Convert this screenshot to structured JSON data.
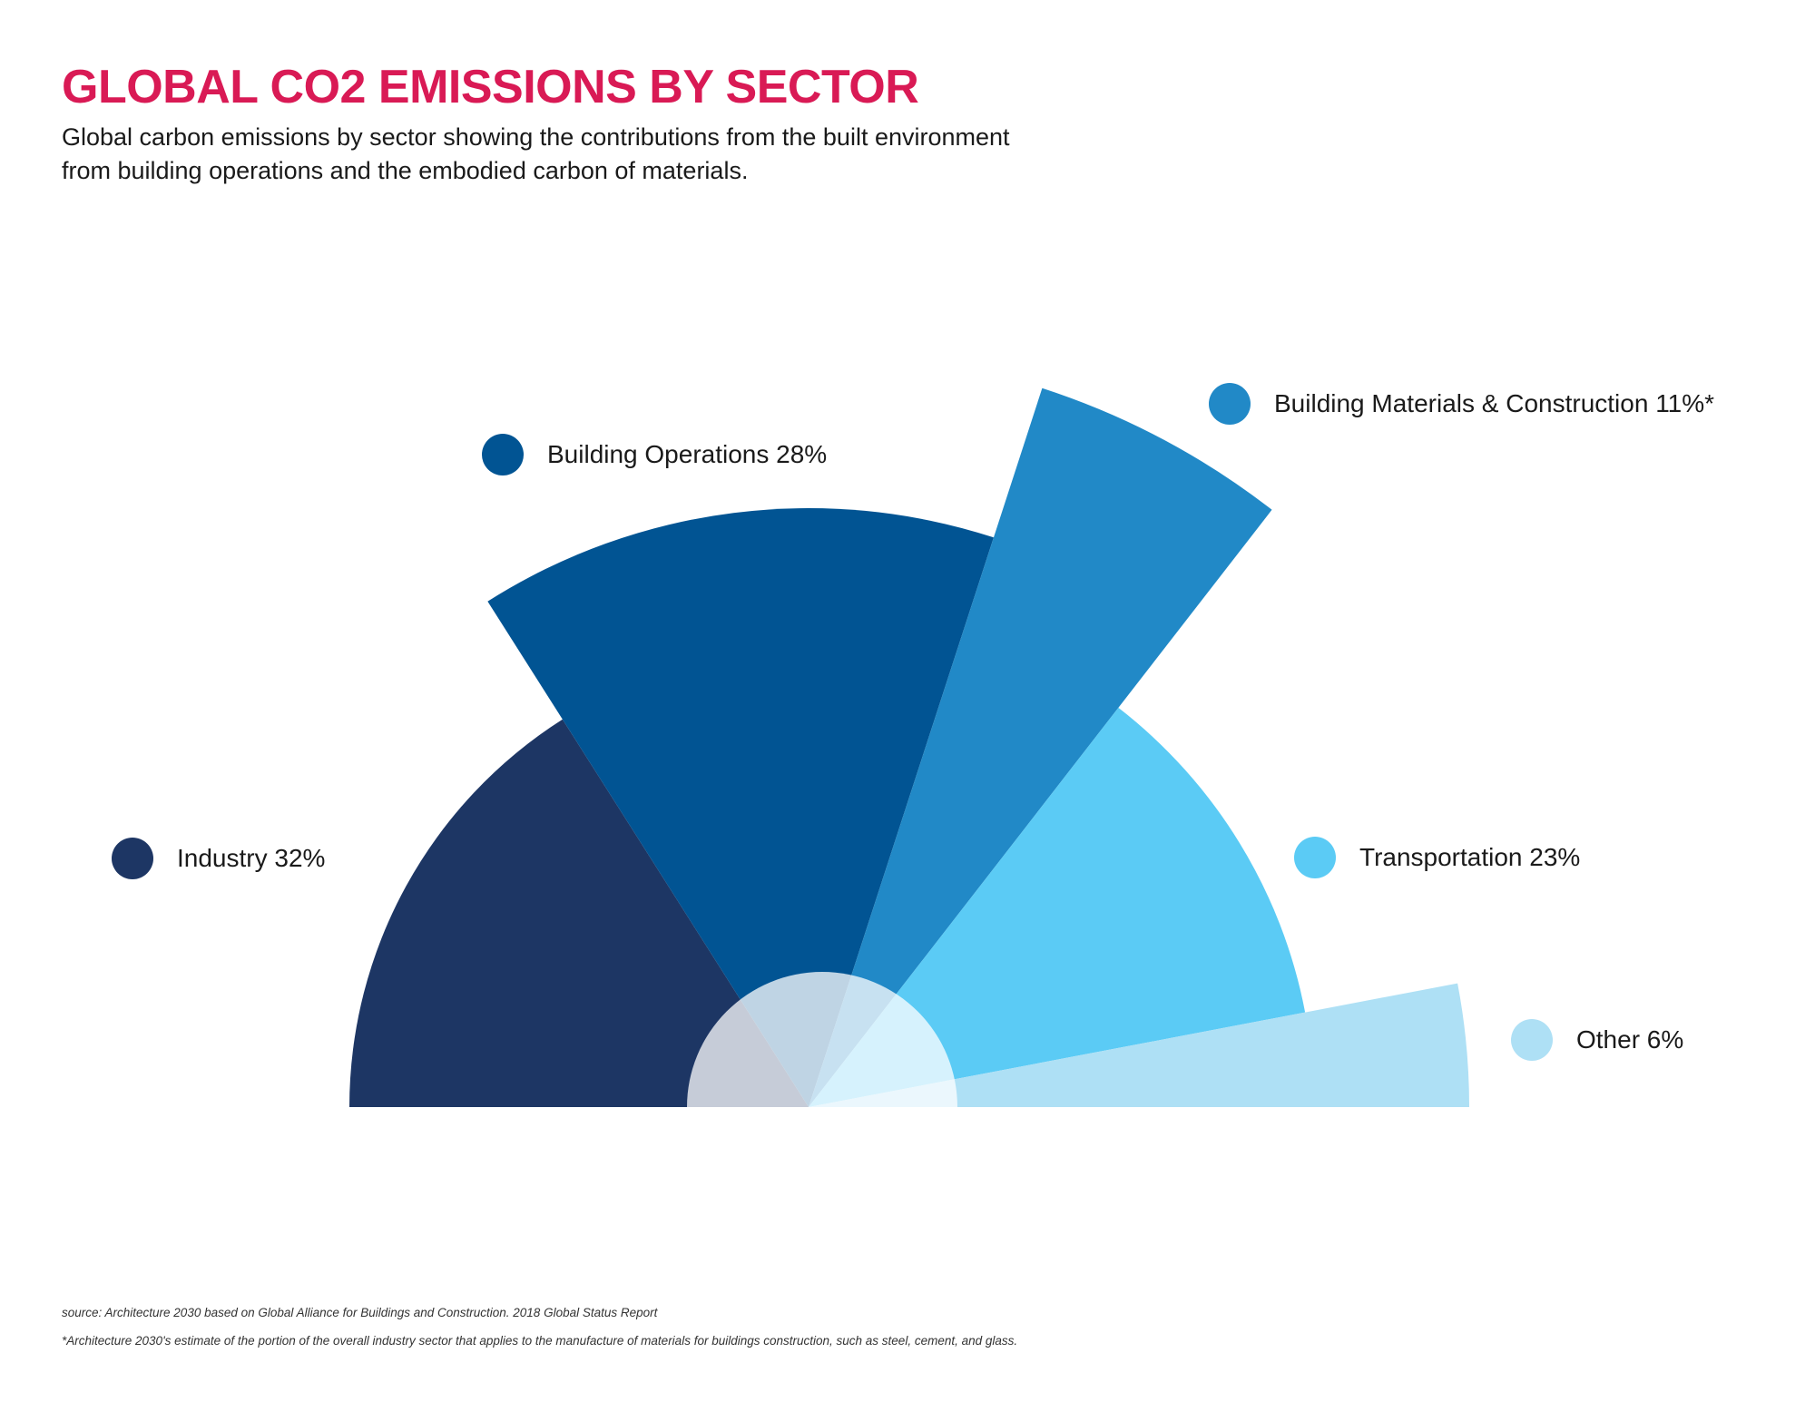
{
  "title": "GLOBAL CO2 EMISSIONS BY SECTOR",
  "subtitle_lines": [
    "Global carbon emissions by sector showing the contributions from the built environment",
    "from building operations and the embodied carbon of materials."
  ],
  "chart_data": {
    "type": "pie",
    "shape": "half-pie, slices with varying radius, translucent center semicircle",
    "categories": [
      "Industry",
      "Building Operations",
      "Building Materials & Construction",
      "Transportation",
      "Other"
    ],
    "values": [
      32,
      28,
      11,
      23,
      6
    ],
    "unit": "%",
    "labels": [
      "Industry 32%",
      "Building Operations 28%",
      "Building Materials & Construction 11%*",
      "Transportation 23%",
      "Other 6%"
    ],
    "colors": [
      "#1d3664",
      "#015493",
      "#2189c7",
      "#5bcbf5",
      "#aee0f5"
    ],
    "legend_placement": "around-chart"
  },
  "footnotes": {
    "source": "source: Architecture 2030 based on Global Alliance for Buildings and Construction. 2018 Global Status Report",
    "asterisk": "*Architecture 2030's estimate of the portion of the overall industry sector that applies to the manufacture of materials for buildings construction, such as steel, cement, and glass."
  }
}
